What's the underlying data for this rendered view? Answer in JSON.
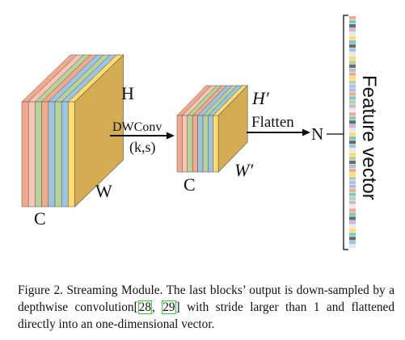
{
  "figure": {
    "labels": {
      "h_in": "H",
      "w_in": "W",
      "c_in": "C",
      "h_out": "H′",
      "w_out": "W′",
      "c_out": "C",
      "op1_name": "DWConv",
      "op1_params": "(k,s)",
      "op2_name": "Flatten",
      "n_label": "N",
      "vector_label": "Feature vector"
    },
    "colors": {
      "face": "#d4ad52",
      "face_side": "#c7a048",
      "slices": [
        "#f4a98d",
        "#f7c7b4",
        "#b7d39a",
        "#f4a98d",
        "#9dc4e3",
        "#b7d39a",
        "#9dc4e3",
        "#ffdc6e"
      ],
      "vector": [
        "#f4a98d",
        "#b7d39a",
        "#9dc4e3",
        "#ffdc6e",
        "#6b6b6b",
        "#e8e8e8",
        "#7fc8c8",
        "#c8b4e6"
      ]
    }
  },
  "caption": {
    "label": "Figure 2.",
    "title": "Streaming Module.",
    "text_a": "The last blocks’ output is down-sampled by a depthwise convolution",
    "ref_open": "[",
    "ref1": "28",
    "ref_sep": ", ",
    "ref2": "29",
    "ref_close": "]",
    "text_b": "with stride larger than 1 and flattened directly into an one-dimensional vector."
  }
}
